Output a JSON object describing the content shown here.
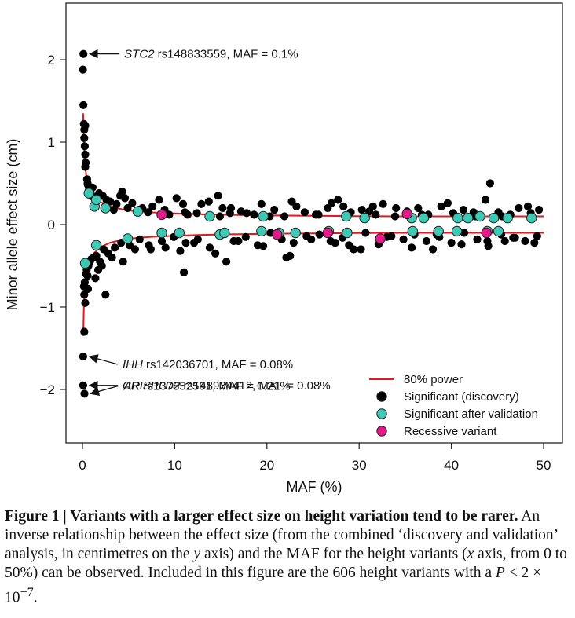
{
  "chart_data": {
    "type": "scatter",
    "xlabel": "MAF (%)",
    "ylabel": "Minor allele effect size (cm)",
    "xlim": [
      0,
      50
    ],
    "ylim": [
      -2.5,
      2.5
    ],
    "x_ticks": [
      "0",
      "10",
      "20",
      "30",
      "40",
      "50"
    ],
    "y_ticks": [
      "2",
      "1",
      "0",
      "−1",
      "−2"
    ],
    "x_tick_values": [
      0,
      10,
      20,
      30,
      40,
      50
    ],
    "y_tick_values": [
      2,
      1,
      0,
      -1,
      -2
    ],
    "legend": {
      "position": "bottom-right",
      "entries": [
        {
          "label": "80% power",
          "kind": "line",
          "color": "#e31a1c"
        },
        {
          "label": "Significant (discovery)",
          "kind": "point",
          "color": "#000000"
        },
        {
          "label": "Significant after validation",
          "kind": "point",
          "color": "#3ec9b4"
        },
        {
          "label": "Recessive variant",
          "kind": "point",
          "color": "#e5198a"
        }
      ]
    },
    "annotations": [
      {
        "gene": "STC2",
        "text": " rs148833559, MAF = 0.1%",
        "x": 0.1,
        "y": 2.07
      },
      {
        "gene": "IHH",
        "text": " rs142036701, MAF = 0.08%",
        "x": 0.08,
        "y": -1.6
      },
      {
        "gene": "CRISPLD2",
        "text": " rs148934412, MAF = 0.08%",
        "x": 0.08,
        "y": -1.95
      },
      {
        "gene": "AR",
        "text": " rs137852591, MAF = 0.21%",
        "x": 0.21,
        "y": -2.05
      }
    ],
    "power_curve": {
      "name": "80% power",
      "x": [
        0.08,
        0.15,
        0.25,
        0.4,
        0.6,
        0.9,
        1.3,
        2,
        3,
        4.5,
        6,
        8,
        10,
        13,
        16,
        20,
        25,
        30,
        35,
        40,
        45,
        50
      ],
      "y": [
        1.35,
        1.0,
        0.78,
        0.6,
        0.5,
        0.4,
        0.34,
        0.27,
        0.22,
        0.18,
        0.16,
        0.145,
        0.135,
        0.125,
        0.118,
        0.112,
        0.107,
        0.103,
        0.1,
        0.1,
        0.1,
        0.1
      ]
    },
    "series": [
      {
        "name": "Significant (discovery)",
        "color": "#000000",
        "x": [
          0.1,
          0.05,
          0.1,
          0.15,
          0.2,
          0.25,
          0.2,
          0.3,
          0.35,
          0.3,
          0.5,
          0.55,
          0.6,
          0.7,
          0.8,
          0.9,
          1.0,
          1.2,
          1.5,
          2.2,
          2.5,
          3.0,
          3.4,
          4.1,
          4.9,
          5.4,
          6.5,
          7.1,
          8.3,
          8.9,
          10.2,
          11.4,
          12.4,
          13.7,
          14.9,
          16.1,
          17.2,
          18.6,
          19.4,
          20.8,
          21.9,
          23.2,
          24.1,
          25.3,
          26.6,
          27.7,
          29.1,
          30.3,
          31.8,
          32.6,
          33.9,
          35.2,
          36.4,
          37.5,
          38.9,
          40.2,
          41.3,
          42.6,
          43.7,
          45.1,
          46.4,
          47.3,
          48.6,
          49.5,
          0.3,
          1.1,
          1.8,
          2.6,
          3.7,
          4.6,
          6.1,
          7.6,
          9.4,
          11.1,
          12.9,
          15.2,
          17.8,
          20.3,
          22.7,
          25.6,
          28.3,
          31.1,
          34.0,
          36.8,
          39.6,
          42.4,
          45.5,
          48.3,
          4.3,
          10.9,
          14.7,
          16.0,
          27.0,
          31.5,
          44.2,
          0.15,
          0.2,
          0.25,
          0.3,
          0.4,
          0.45,
          0.55,
          0.65,
          0.8,
          0.95,
          1.2,
          1.5,
          1.9,
          2.3,
          2.8,
          3.5,
          4.2,
          5.1,
          6.2,
          7.4,
          8.6,
          9.9,
          11.2,
          12.5,
          13.8,
          15.1,
          16.4,
          17.7,
          19.0,
          20.4,
          21.6,
          22.9,
          24.3,
          25.7,
          26.9,
          28.2,
          29.4,
          30.7,
          32.1,
          33.5,
          34.8,
          36.0,
          37.3,
          38.7,
          40.0,
          41.4,
          42.8,
          44.0,
          45.4,
          46.7,
          48.0,
          49.3,
          0.6,
          1.4,
          2.1,
          3.2,
          4.4,
          5.7,
          7.2,
          9.0,
          10.6,
          12.1,
          14.4,
          16.9,
          19.6,
          22.1,
          24.8,
          27.4,
          30.2,
          33.0,
          35.7,
          38.4,
          41.1,
          43.9,
          46.9,
          49.0,
          0.2,
          1.7,
          2.5,
          11.0,
          15.6,
          22.5,
          28.9,
          38.0,
          45.8,
          0.08,
          0.08,
          0.21
        ],
        "y": [
          2.07,
          1.88,
          1.45,
          1.22,
          1.05,
          0.95,
          1.15,
          0.85,
          0.75,
          1.2,
          0.55,
          0.5,
          0.48,
          0.42,
          0.4,
          0.38,
          0.35,
          0.33,
          0.3,
          0.35,
          0.22,
          0.28,
          0.18,
          0.35,
          0.2,
          0.26,
          0.2,
          0.15,
          0.3,
          0.18,
          0.32,
          0.12,
          0.14,
          0.28,
          0.1,
          0.2,
          0.16,
          0.12,
          0.25,
          0.18,
          0.1,
          0.22,
          0.15,
          0.12,
          0.2,
          0.3,
          0.15,
          0.18,
          0.12,
          0.25,
          0.1,
          0.16,
          0.2,
          0.12,
          0.22,
          0.14,
          0.18,
          0.1,
          0.3,
          0.15,
          0.12,
          0.2,
          0.14,
          0.18,
          0.7,
          0.45,
          0.38,
          0.3,
          0.25,
          0.32,
          0.18,
          0.22,
          0.12,
          0.15,
          0.25,
          0.2,
          0.14,
          0.1,
          0.28,
          0.12,
          0.22,
          0.16,
          0.2,
          0.12,
          0.26,
          0.15,
          0.1,
          0.22,
          0.4,
          0.25,
          0.35,
          0.14,
          0.26,
          0.22,
          0.5,
          -0.75,
          -0.85,
          -0.7,
          -0.95,
          -0.6,
          -0.55,
          -0.62,
          -0.5,
          -0.45,
          -0.42,
          -0.4,
          -0.38,
          -0.45,
          -0.3,
          -0.35,
          -0.28,
          -0.22,
          -0.25,
          -0.18,
          -0.3,
          -0.2,
          -0.15,
          -0.22,
          -0.18,
          -0.28,
          -0.12,
          -0.2,
          -0.15,
          -0.25,
          -0.1,
          -0.18,
          -0.22,
          -0.14,
          -0.12,
          -0.2,
          -0.16,
          -0.3,
          -0.1,
          -0.24,
          -0.14,
          -0.18,
          -0.12,
          -0.2,
          -0.15,
          -0.22,
          -0.1,
          -0.18,
          -0.26,
          -0.12,
          -0.16,
          -0.2,
          -0.14,
          -0.78,
          -0.65,
          -0.5,
          -0.4,
          -0.45,
          -0.3,
          -0.25,
          -0.28,
          -0.32,
          -0.22,
          -0.35,
          -0.2,
          -0.26,
          -0.4,
          -0.18,
          -0.22,
          -0.3,
          -0.15,
          -0.28,
          -0.12,
          -0.24,
          -0.2,
          -0.16,
          -0.22,
          -1.3,
          -0.55,
          -0.85,
          -0.58,
          -0.45,
          -0.38,
          -0.25,
          -0.3,
          -0.2,
          -1.6,
          -1.95,
          -2.05
        ]
      },
      {
        "name": "Significant after validation",
        "color": "#3ec9b4",
        "x": [
          0.7,
          1.3,
          1.5,
          2.5,
          6.0,
          13.8,
          19.6,
          28.6,
          30.6,
          35.7,
          37.0,
          40.7,
          41.8,
          43.1,
          44.6,
          46.1,
          48.7,
          0.3,
          1.5,
          4.9,
          8.6,
          10.5,
          14.9,
          15.4,
          19.4,
          21.3,
          23.1,
          26.7,
          28.7,
          35.8,
          38.6,
          40.6,
          43.9,
          45.1
        ],
        "y": [
          0.38,
          0.22,
          0.3,
          0.2,
          0.16,
          0.1,
          0.1,
          0.1,
          0.08,
          0.08,
          0.08,
          0.08,
          0.08,
          0.1,
          0.08,
          0.08,
          0.08,
          -0.47,
          -0.25,
          -0.17,
          -0.1,
          -0.1,
          -0.12,
          -0.1,
          -0.08,
          -0.1,
          -0.1,
          -0.08,
          -0.1,
          -0.08,
          -0.08,
          -0.08,
          -0.08,
          -0.08
        ]
      },
      {
        "name": "Recessive variant",
        "color": "#e5198a",
        "x": [
          8.6,
          35.2,
          21.1,
          26.6,
          32.3,
          43.8
        ],
        "y": [
          0.12,
          0.13,
          -0.12,
          -0.1,
          -0.17,
          -0.1
        ]
      }
    ]
  },
  "caption": {
    "label": "Figure 1 | ",
    "heading": "Variants with a larger effect size on height variation tend to be rarer.",
    "text_1": " An inverse relationship between the effect size (from the combined ‘discovery and validation’ analysis, in centimetres on the ",
    "y_var": "y",
    "text_2": " axis) and the MAF for the height variants (",
    "x_var": "x",
    "text_3": " axis, from 0 to 50%) can be observed. Included in this figure are the 606 height variants with a ",
    "p_var": "P",
    "text_4": " < 2 × 10",
    "exponent": "−7",
    "text_5": "."
  }
}
